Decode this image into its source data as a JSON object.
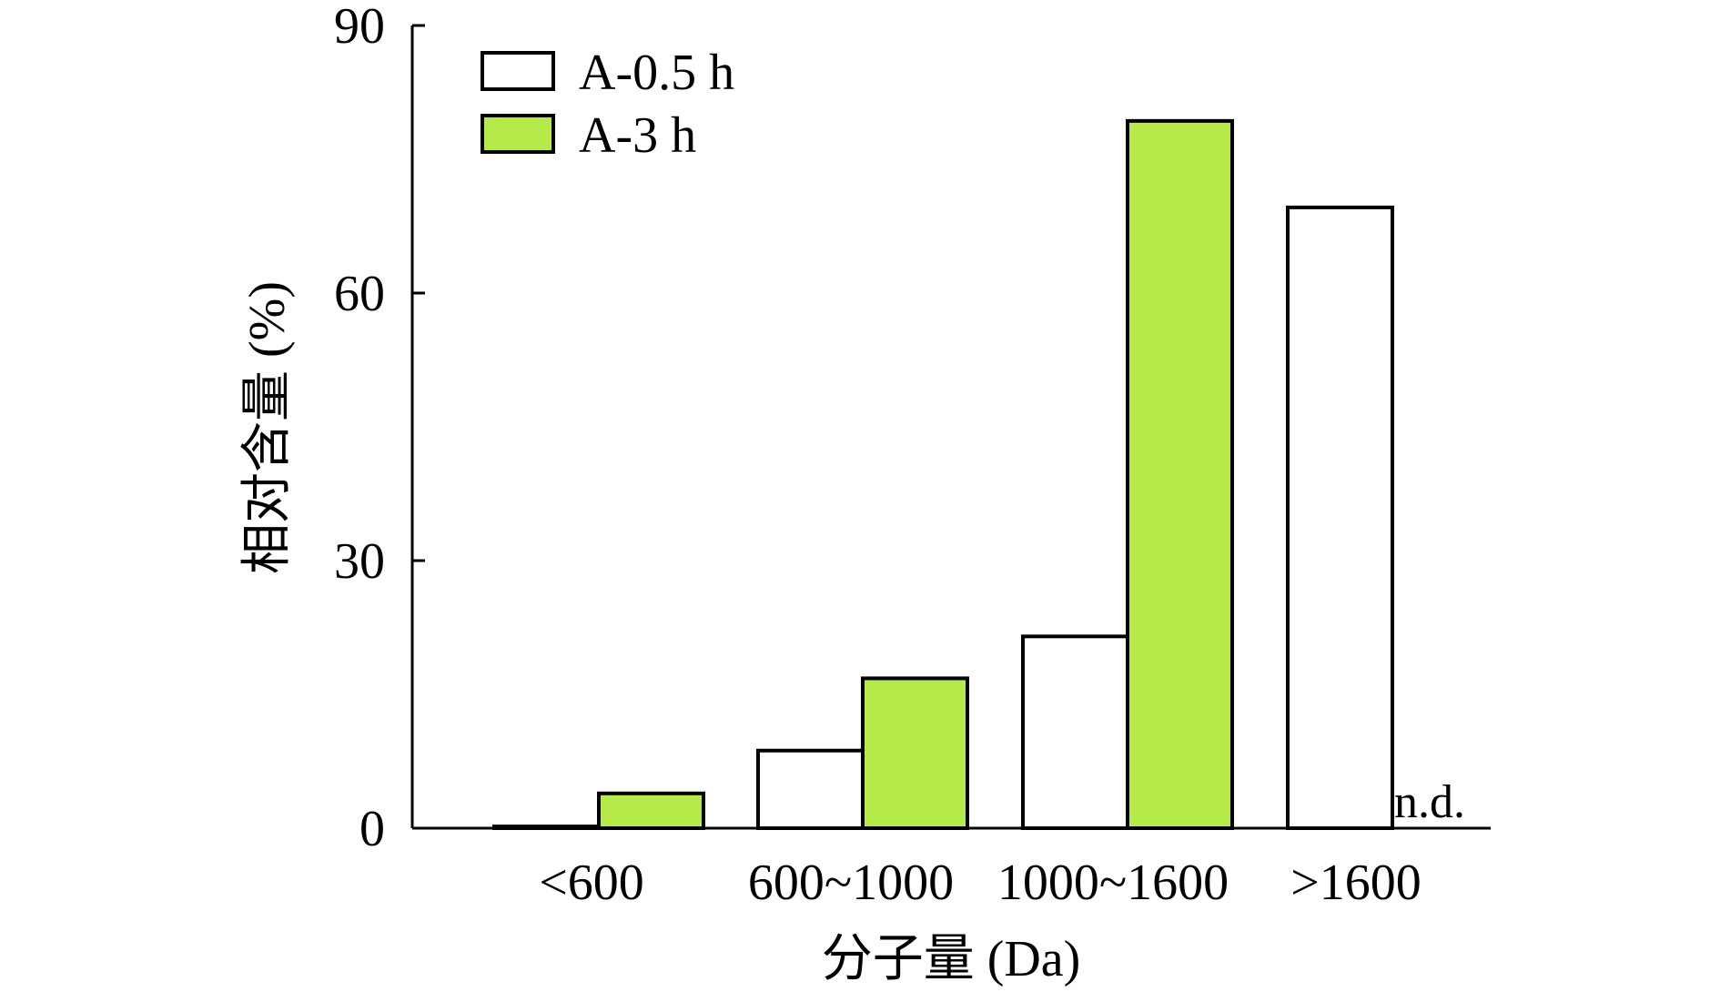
{
  "chart_data": {
    "type": "bar",
    "categories": [
      "<600",
      "600~1000",
      "1000~1600",
      ">1600"
    ],
    "series": [
      {
        "name": "A-0.5 h",
        "values": [
          0.2,
          8.7,
          21.5,
          69.6
        ],
        "color": "#ffffff"
      },
      {
        "name": "A-3 h",
        "values": [
          3.9,
          16.8,
          79.3,
          null
        ],
        "color": "#b5ea4a"
      }
    ],
    "xlabel": "分子量 (Da)",
    "ylabel": "相对含量 (%)",
    "ylim": [
      0,
      90
    ],
    "yticks": [
      0,
      30,
      60,
      90
    ],
    "legend_position": "top-left",
    "grid": false,
    "annotations": [
      {
        "text": "n.d.",
        "category": ">1600",
        "series": "A-3 h"
      }
    ]
  }
}
